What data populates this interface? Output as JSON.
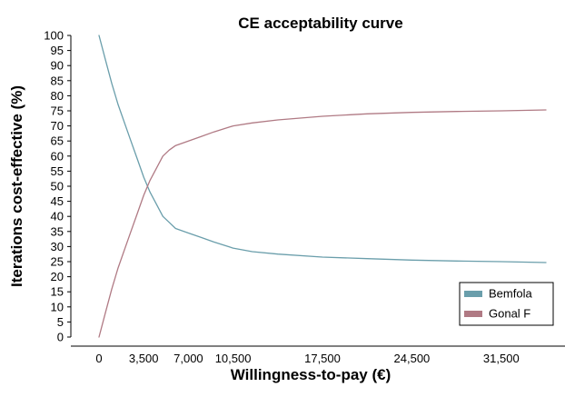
{
  "chart_data": {
    "type": "line",
    "title": "CE acceptability curve",
    "xlabel": "Willingness-to-pay (€)",
    "ylabel": "Iterations cost-effective (%)",
    "xlim": [
      -3000,
      35000
    ],
    "ylim": [
      0,
      100
    ],
    "x_ticks": [
      0,
      3500,
      7000,
      10500,
      17500,
      24500,
      31500
    ],
    "x_tick_labels": [
      "0",
      "3,500",
      "7,000",
      "10,500",
      "17,500",
      "24,500",
      "31,500"
    ],
    "y_ticks": [
      0,
      5,
      10,
      15,
      20,
      25,
      30,
      35,
      40,
      45,
      50,
      55,
      60,
      65,
      70,
      75,
      80,
      85,
      90,
      95,
      100
    ],
    "y_tick_labels": [
      "0",
      "5",
      "10",
      "15",
      "20",
      "25",
      "30",
      "35",
      "40",
      "45",
      "50",
      "55",
      "60",
      "65",
      "70",
      "75",
      "80",
      "85",
      "90",
      "95",
      "100"
    ],
    "grid": false,
    "legend_position": "bottom-right",
    "series": [
      {
        "name": "Bemfola",
        "color": "#6a9eab",
        "x": [
          0,
          500,
          1000,
          1500,
          2000,
          2500,
          3000,
          3500,
          4000,
          4500,
          5000,
          5500,
          6000,
          7000,
          8000,
          9000,
          10500,
          12000,
          14000,
          17500,
          21000,
          24500,
          28000,
          31500,
          35000
        ],
        "y": [
          100,
          92,
          84,
          77,
          71,
          65,
          59,
          53,
          48,
          44,
          40,
          38,
          36,
          34.5,
          33,
          31.5,
          29.5,
          28.3,
          27.5,
          26.5,
          26,
          25.5,
          25.2,
          25,
          24.7
        ]
      },
      {
        "name": "Gonal F",
        "color": "#b07a84",
        "x": [
          0,
          500,
          1000,
          1500,
          2000,
          2500,
          3000,
          3500,
          4000,
          4500,
          5000,
          5500,
          6000,
          7000,
          8000,
          9000,
          10500,
          12000,
          14000,
          17500,
          21000,
          24500,
          28000,
          31500,
          35000
        ],
        "y": [
          0,
          8,
          16,
          23,
          29,
          35,
          41,
          47,
          52,
          56,
          60,
          62,
          63.5,
          65,
          66.5,
          68,
          70,
          71,
          72,
          73.2,
          74,
          74.5,
          74.8,
          75,
          75.3
        ]
      }
    ]
  }
}
